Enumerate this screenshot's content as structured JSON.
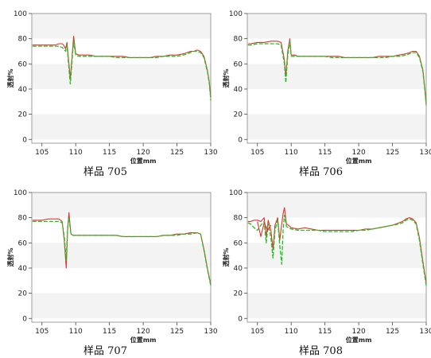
{
  "chart_data": [
    {
      "type": "line",
      "title": "",
      "caption": "样品 705",
      "xlabel": "位置mm",
      "ylabel": "透射%",
      "xlim": [
        103.5,
        130
      ],
      "ylim": [
        -3,
        100
      ],
      "xticks": [
        105,
        110,
        115,
        120,
        125,
        130
      ],
      "yticks": [
        0,
        20,
        40,
        60,
        80,
        100
      ],
      "grid": "alternating horizontal bands",
      "series": [
        {
          "color": "#e03030",
          "x": [
            103.6,
            104,
            105,
            106,
            107,
            107.5,
            108,
            108.2,
            108.5,
            108.7,
            109,
            109.2,
            109.5,
            109.7,
            110,
            110.5,
            111,
            112,
            113,
            114,
            115,
            116,
            117,
            118,
            119,
            120,
            121,
            122,
            123,
            124,
            125,
            126,
            126.5,
            127,
            127.5,
            128,
            128.5,
            129,
            129.5,
            129.8,
            130
          ],
          "y": [
            75,
            75,
            75,
            75,
            75,
            76,
            76,
            75,
            72,
            77,
            60,
            48,
            68,
            82,
            68,
            67,
            67,
            67,
            66,
            66,
            66,
            66,
            66,
            65,
            65,
            65,
            65,
            66,
            66,
            67,
            67,
            68,
            69,
            70,
            70,
            71,
            70,
            66,
            55,
            45,
            33
          ]
        },
        {
          "color": "#20c020",
          "x": [
            103.6,
            104,
            105,
            106,
            107,
            107.5,
            108,
            108.2,
            108.5,
            108.7,
            109,
            109.2,
            109.5,
            109.7,
            110,
            110.5,
            111,
            112,
            113,
            114,
            115,
            116,
            117,
            118,
            119,
            120,
            121,
            122,
            123,
            124,
            125,
            126,
            126.5,
            127,
            127.5,
            128,
            128.5,
            129,
            129.5,
            129.8,
            130
          ],
          "y": [
            74,
            74,
            74,
            74,
            74,
            74,
            73,
            72,
            70,
            75,
            56,
            44,
            65,
            78,
            67,
            66,
            66,
            66,
            66,
            66,
            66,
            65,
            65,
            65,
            65,
            65,
            65,
            65,
            66,
            66,
            66,
            67,
            68,
            69,
            70,
            70,
            69,
            65,
            54,
            44,
            31
          ]
        }
      ]
    },
    {
      "type": "line",
      "title": "",
      "caption": "样品 706",
      "xlabel": "位置mm",
      "ylabel": "透射%",
      "xlim": [
        103.5,
        130
      ],
      "ylim": [
        -3,
        100
      ],
      "xticks": [
        105,
        110,
        115,
        120,
        125,
        130
      ],
      "yticks": [
        0,
        20,
        40,
        60,
        80,
        100
      ],
      "grid": "alternating horizontal bands",
      "series": [
        {
          "color": "#e03030",
          "x": [
            103.6,
            104,
            105,
            106,
            107,
            108,
            108.5,
            109,
            109.2,
            109.5,
            109.8,
            110,
            110.5,
            111,
            112,
            113,
            114,
            115,
            116,
            117,
            118,
            119,
            120,
            121,
            122,
            123,
            124,
            125,
            126,
            127,
            127.5,
            128,
            128.5,
            129,
            129.5,
            129.8,
            130
          ],
          "y": [
            76,
            76,
            77,
            77,
            78,
            78,
            77,
            63,
            50,
            70,
            80,
            67,
            67,
            66,
            66,
            66,
            66,
            66,
            66,
            66,
            65,
            65,
            65,
            65,
            65,
            66,
            66,
            66,
            67,
            68,
            69,
            70,
            70,
            66,
            55,
            40,
            28
          ]
        },
        {
          "color": "#20c020",
          "x": [
            103.6,
            104,
            105,
            106,
            107,
            108,
            108.5,
            109,
            109.2,
            109.5,
            109.8,
            110,
            110.5,
            111,
            112,
            113,
            114,
            115,
            116,
            117,
            118,
            119,
            120,
            121,
            122,
            123,
            124,
            125,
            126,
            127,
            127.5,
            128,
            128.5,
            129,
            129.5,
            129.8,
            130
          ],
          "y": [
            75,
            75,
            76,
            76,
            76,
            76,
            75,
            60,
            45,
            67,
            78,
            66,
            66,
            66,
            66,
            66,
            66,
            66,
            65,
            65,
            65,
            65,
            65,
            65,
            65,
            65,
            65,
            66,
            66,
            67,
            68,
            69,
            69,
            65,
            54,
            39,
            27
          ]
        }
      ]
    },
    {
      "type": "line",
      "title": "",
      "caption": "样品 707",
      "xlabel": "位置mm",
      "ylabel": "透射%",
      "xlim": [
        103.5,
        130
      ],
      "ylim": [
        -3,
        100
      ],
      "xticks": [
        105,
        110,
        115,
        120,
        125,
        130
      ],
      "yticks": [
        0,
        20,
        40,
        60,
        80,
        100
      ],
      "grid": "alternating horizontal bands",
      "series": [
        {
          "color": "#e03030",
          "x": [
            103.6,
            104,
            105,
            106,
            107,
            107.5,
            108,
            108.3,
            108.6,
            108.8,
            109,
            109.3,
            109.6,
            110,
            111,
            112,
            113,
            114,
            115,
            116,
            117,
            118,
            119,
            120,
            121,
            122,
            123,
            124,
            125,
            126,
            127,
            128,
            128.5,
            129,
            129.5,
            130
          ],
          "y": [
            78,
            78,
            78,
            79,
            79,
            79,
            77,
            62,
            40,
            70,
            84,
            67,
            66,
            66,
            66,
            66,
            66,
            66,
            66,
            66,
            65,
            65,
            65,
            65,
            65,
            65,
            66,
            66,
            67,
            67,
            68,
            68,
            67,
            55,
            40,
            27
          ]
        },
        {
          "color": "#20c020",
          "x": [
            103.6,
            104,
            105,
            106,
            107,
            107.5,
            108,
            108.3,
            108.6,
            108.8,
            109,
            109.3,
            109.6,
            110,
            111,
            112,
            113,
            114,
            115,
            116,
            117,
            118,
            119,
            120,
            121,
            122,
            123,
            124,
            125,
            126,
            127,
            128,
            128.5,
            129,
            129.5,
            130
          ],
          "y": [
            77,
            77,
            77,
            77,
            77,
            77,
            76,
            65,
            46,
            72,
            80,
            67,
            66,
            66,
            66,
            66,
            66,
            66,
            66,
            66,
            65,
            65,
            65,
            65,
            65,
            65,
            66,
            66,
            66,
            67,
            67,
            68,
            67,
            54,
            39,
            26
          ]
        }
      ]
    },
    {
      "type": "line",
      "title": "",
      "caption": "样品 708",
      "xlabel": "位置mm",
      "ylabel": "透射%",
      "xlim": [
        103.5,
        130
      ],
      "ylim": [
        -3,
        100
      ],
      "xticks": [
        105,
        110,
        115,
        120,
        125,
        130
      ],
      "yticks": [
        0,
        20,
        40,
        60,
        80,
        100
      ],
      "grid": "alternating horizontal bands",
      "series": [
        {
          "color": "#e03030",
          "x": [
            103.6,
            104,
            104.5,
            105,
            105.5,
            106,
            106.3,
            106.6,
            107,
            107.3,
            107.6,
            108,
            108.3,
            108.6,
            108.8,
            109,
            109.3,
            109.6,
            110,
            111,
            112,
            113,
            114,
            115,
            116,
            117,
            118,
            119,
            120,
            121,
            122,
            123,
            124,
            125,
            126,
            126.5,
            127,
            127.5,
            128,
            128.5,
            129,
            129.5,
            129.8,
            130
          ],
          "y": [
            77,
            77,
            78,
            78,
            77,
            80,
            65,
            78,
            70,
            55,
            74,
            80,
            62,
            75,
            83,
            88,
            75,
            74,
            72,
            71,
            72,
            71,
            70,
            70,
            70,
            70,
            70,
            70,
            70,
            71,
            71,
            72,
            73,
            74,
            76,
            77,
            79,
            80,
            79,
            76,
            64,
            45,
            35,
            28
          ]
        },
        {
          "color": "#20c020",
          "x": [
            103.6,
            104,
            104.5,
            105,
            105.5,
            106,
            106.3,
            106.6,
            107,
            107.3,
            107.6,
            108,
            108.3,
            108.6,
            108.8,
            109,
            109.3,
            109.6,
            110,
            111,
            112,
            113,
            114,
            115,
            116,
            117,
            118,
            119,
            120,
            121,
            122,
            123,
            124,
            125,
            126,
            126.5,
            127,
            127.5,
            128,
            128.5,
            129,
            129.5,
            129.8,
            130
          ],
          "y": [
            76,
            75,
            72,
            70,
            74,
            77,
            60,
            75,
            64,
            48,
            70,
            78,
            58,
            43,
            70,
            82,
            73,
            72,
            71,
            70,
            70,
            70,
            70,
            69,
            69,
            69,
            69,
            69,
            70,
            70,
            71,
            72,
            73,
            74,
            75,
            76,
            78,
            79,
            78,
            75,
            62,
            43,
            33,
            26
          ]
        },
        {
          "color": "#e03030",
          "x": [
            105,
            105.5,
            106,
            106.5,
            107
          ],
          "y": [
            77,
            65,
            76,
            70,
            74
          ]
        }
      ]
    }
  ]
}
